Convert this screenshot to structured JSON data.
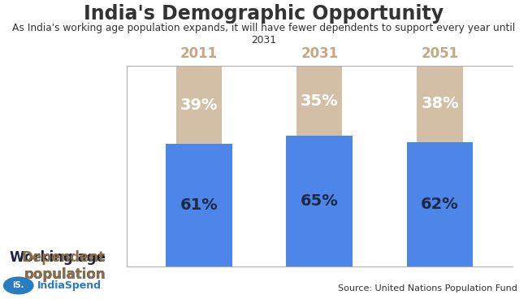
{
  "chart_data": {
    "type": "bar",
    "stacked": true,
    "title": "India's Demographic Opportunity",
    "subtitle": "As India's working age population expands, it will have fewer dependents to support every year until 2031",
    "categories": [
      "2011",
      "2031",
      "2051"
    ],
    "series": [
      {
        "name": "Working age population",
        "color": "#4d86e8",
        "values": [
          61,
          65,
          62
        ],
        "value_labels": [
          "61%",
          "65%",
          "62%"
        ]
      },
      {
        "name": "Dependent population",
        "color": "#d3bfa5",
        "values": [
          39,
          35,
          38
        ],
        "value_labels": [
          "39%",
          "35%",
          "38%"
        ]
      }
    ],
    "ylim": [
      0,
      100
    ],
    "data_labels": true,
    "tick_labels": "x",
    "grid": false,
    "source": "Source: United Nations Population Fund",
    "logo": "IndiaSpend",
    "logo_mark": "iS."
  }
}
